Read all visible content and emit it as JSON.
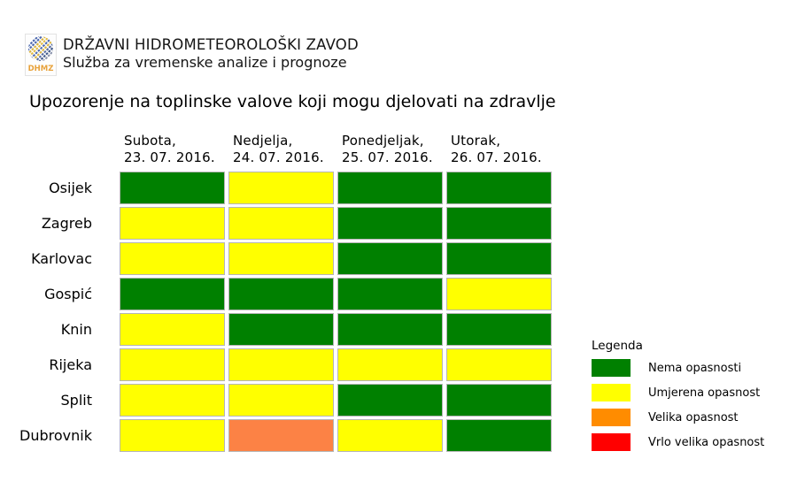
{
  "header": {
    "org_name": "DRŽAVNI HIDROMETEOROLOŠKI ZAVOD",
    "dept_name": "Služba za vremenske analize i prognoze",
    "logo_text": "DHMZ"
  },
  "legend": {
    "title": "Legenda",
    "items": [
      {
        "label": "Nema opasnosti",
        "color": "#008000"
      },
      {
        "label": "Umjerena opasnost",
        "color": "#ffff00"
      },
      {
        "label": "Velika opasnost",
        "color": "#ff8c00"
      },
      {
        "label": "Vrlo velika opasnost",
        "color": "#ff0000"
      }
    ]
  },
  "chart_data": {
    "type": "heatmap",
    "title": "Upozorenje na toplinske valove koji mogu djelovati na zdravlje",
    "columns": [
      {
        "line1": "Subota,",
        "line2": "23. 07. 2016."
      },
      {
        "line1": "Nedjelja,",
        "line2": "24. 07. 2016."
      },
      {
        "line1": "Ponedjeljak,",
        "line2": "25. 07. 2016."
      },
      {
        "line1": "Utorak,",
        "line2": "26. 07. 2016."
      }
    ],
    "rows": [
      "Osijek",
      "Zagreb",
      "Karlovac",
      "Gospić",
      "Knin",
      "Rijeka",
      "Split",
      "Dubrovnik"
    ],
    "levels": [
      "none",
      "moderate",
      "high",
      "very_high"
    ],
    "level_labels": {
      "none": "Nema opasnosti",
      "moderate": "Umjerena opasnost",
      "high": "Velika opasnost",
      "very_high": "Vrlo velika opasnost"
    },
    "cell_palette": {
      "none": "#008000",
      "moderate": "#ffff00",
      "high": "#fc8245",
      "very_high": "#ff0000"
    },
    "values": [
      [
        "none",
        "moderate",
        "none",
        "none"
      ],
      [
        "moderate",
        "moderate",
        "none",
        "none"
      ],
      [
        "moderate",
        "moderate",
        "none",
        "none"
      ],
      [
        "none",
        "none",
        "none",
        "moderate"
      ],
      [
        "moderate",
        "none",
        "none",
        "none"
      ],
      [
        "moderate",
        "moderate",
        "moderate",
        "moderate"
      ],
      [
        "moderate",
        "moderate",
        "none",
        "none"
      ],
      [
        "moderate",
        "high",
        "moderate",
        "none"
      ]
    ],
    "legend_position": "right",
    "grid": false
  }
}
